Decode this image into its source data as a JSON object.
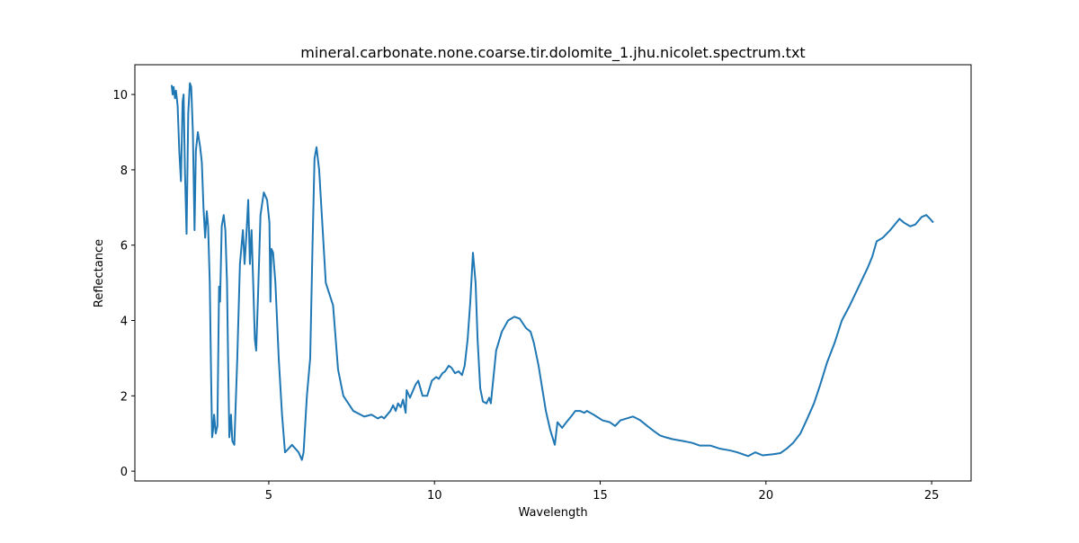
{
  "chart_data": {
    "type": "line",
    "title": "mineral.carbonate.none.coarse.tir.dolomite_1.jhu.nicolet.spectrum.txt",
    "xlabel": "Wavelength",
    "ylabel": "Reflectance",
    "color": "#1f77b4",
    "xlim": [
      0.96,
      26.19
    ],
    "ylim": [
      -0.26,
      10.79
    ],
    "xticks": [
      5,
      10,
      15,
      20,
      25
    ],
    "yticks": [
      0,
      2,
      4,
      6,
      8,
      10
    ],
    "x": [
      2.07,
      2.1,
      2.13,
      2.17,
      2.2,
      2.25,
      2.3,
      2.35,
      2.4,
      2.43,
      2.47,
      2.52,
      2.57,
      2.62,
      2.66,
      2.71,
      2.76,
      2.8,
      2.86,
      2.93,
      2.98,
      3.03,
      3.08,
      3.13,
      3.17,
      3.22,
      3.26,
      3.29,
      3.32,
      3.35,
      3.4,
      3.45,
      3.5,
      3.53,
      3.58,
      3.64,
      3.69,
      3.74,
      3.78,
      3.81,
      3.86,
      3.9,
      3.96,
      4.05,
      4.13,
      4.18,
      4.22,
      4.27,
      4.32,
      4.38,
      4.43,
      4.48,
      4.53,
      4.58,
      4.62,
      4.67,
      4.75,
      4.85,
      4.95,
      5.02,
      5.05,
      5.08,
      5.13,
      5.2,
      5.3,
      5.4,
      5.49,
      5.6,
      5.7,
      5.8,
      5.9,
      6.0,
      6.05,
      6.15,
      6.25,
      6.32,
      6.38,
      6.44,
      6.52,
      6.6,
      6.72,
      6.94,
      7.09,
      7.25,
      7.55,
      7.88,
      8.1,
      8.29,
      8.4,
      8.48,
      8.67,
      8.75,
      8.83,
      8.9,
      8.98,
      9.05,
      9.13,
      9.16,
      9.26,
      9.43,
      9.51,
      9.64,
      9.78,
      9.92,
      10.05,
      10.13,
      10.24,
      10.32,
      10.43,
      10.51,
      10.62,
      10.73,
      10.83,
      10.91,
      11.0,
      11.08,
      11.16,
      11.24,
      11.3,
      11.38,
      11.46,
      11.57,
      11.65,
      11.7,
      11.78,
      11.86,
      12.03,
      12.22,
      12.41,
      12.57,
      12.76,
      12.9,
      13.0,
      13.14,
      13.25,
      13.36,
      13.49,
      13.63,
      13.71,
      13.85,
      13.98,
      14.12,
      14.25,
      14.39,
      14.52,
      14.6,
      14.8,
      15.07,
      15.29,
      15.45,
      15.61,
      15.8,
      15.99,
      16.21,
      16.42,
      16.64,
      16.8,
      16.97,
      17.18,
      17.51,
      17.78,
      18.0,
      18.32,
      18.6,
      18.92,
      19.14,
      19.46,
      19.68,
      19.9,
      20.22,
      20.44,
      20.63,
      20.82,
      21.04,
      21.25,
      21.45,
      21.64,
      21.85,
      22.07,
      22.29,
      22.53,
      22.8,
      23.07,
      23.21,
      23.34,
      23.53,
      23.75,
      24.03,
      24.16,
      24.35,
      24.51,
      24.7,
      24.84,
      24.95,
      25.05
    ],
    "values": [
      10.25,
      10.0,
      10.2,
      9.9,
      10.1,
      9.7,
      8.5,
      7.7,
      9.8,
      10.0,
      8.0,
      6.3,
      9.5,
      10.3,
      10.2,
      9.0,
      6.4,
      8.5,
      9.0,
      8.6,
      8.2,
      7.0,
      6.2,
      6.9,
      6.5,
      5.0,
      2.5,
      0.9,
      1.1,
      1.5,
      1.0,
      1.2,
      4.9,
      4.5,
      6.5,
      6.8,
      6.4,
      5.0,
      2.5,
      0.9,
      1.5,
      0.8,
      0.7,
      3.0,
      5.5,
      6.0,
      6.4,
      5.5,
      6.2,
      7.2,
      5.5,
      6.4,
      5.0,
      3.5,
      3.2,
      4.5,
      6.8,
      7.4,
      7.2,
      6.6,
      4.5,
      5.9,
      5.8,
      5.0,
      3.0,
      1.5,
      0.5,
      0.6,
      0.7,
      0.6,
      0.5,
      0.3,
      0.5,
      2.0,
      3.0,
      6.0,
      8.3,
      8.6,
      8.0,
      6.8,
      5.0,
      4.4,
      2.7,
      2.0,
      1.6,
      1.45,
      1.5,
      1.4,
      1.45,
      1.4,
      1.6,
      1.75,
      1.6,
      1.8,
      1.7,
      1.9,
      1.55,
      2.15,
      1.95,
      2.3,
      2.4,
      2.0,
      2.0,
      2.4,
      2.5,
      2.45,
      2.6,
      2.65,
      2.8,
      2.75,
      2.6,
      2.65,
      2.55,
      2.8,
      3.5,
      4.5,
      5.8,
      5.0,
      3.5,
      2.2,
      1.85,
      1.8,
      1.95,
      1.8,
      2.5,
      3.2,
      3.7,
      4.0,
      4.1,
      4.05,
      3.8,
      3.7,
      3.4,
      2.8,
      2.2,
      1.6,
      1.1,
      0.7,
      1.3,
      1.15,
      1.3,
      1.45,
      1.6,
      1.6,
      1.55,
      1.6,
      1.5,
      1.35,
      1.3,
      1.2,
      1.35,
      1.4,
      1.45,
      1.35,
      1.2,
      1.05,
      0.95,
      0.9,
      0.85,
      0.8,
      0.75,
      0.68,
      0.68,
      0.6,
      0.55,
      0.5,
      0.4,
      0.5,
      0.42,
      0.45,
      0.48,
      0.6,
      0.75,
      1.0,
      1.4,
      1.8,
      2.3,
      2.9,
      3.4,
      4.0,
      4.4,
      4.9,
      5.4,
      5.7,
      6.1,
      6.2,
      6.4,
      6.7,
      6.6,
      6.5,
      6.55,
      6.75,
      6.8,
      6.7,
      6.6
    ]
  }
}
